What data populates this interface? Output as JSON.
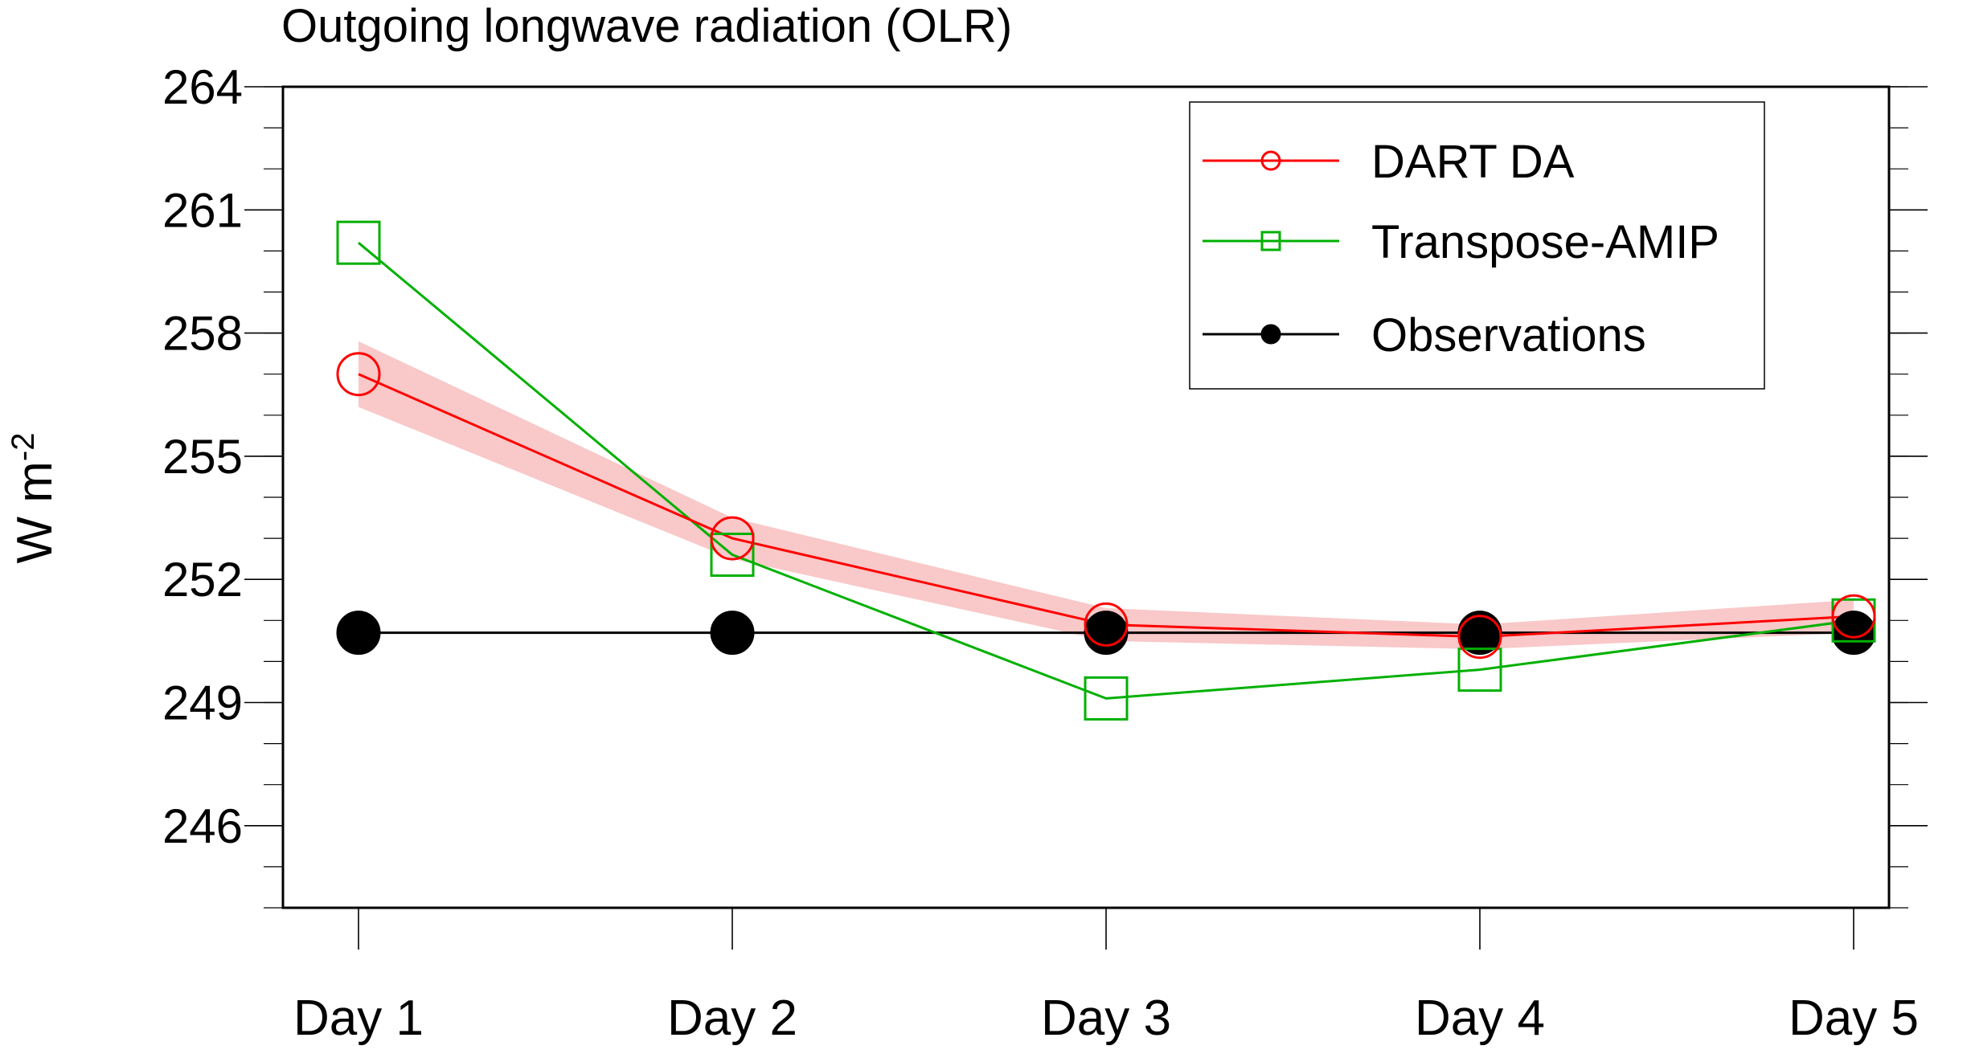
{
  "chart_data": {
    "type": "line",
    "title": "Outgoing longwave radiation (OLR)",
    "ylabel": "W m",
    "ylabel_superscript": "-2",
    "xlabel": "",
    "categories": [
      "Day 1",
      "Day 2",
      "Day 3",
      "Day 4",
      "Day 5"
    ],
    "y_ticks": [
      "246",
      "249",
      "252",
      "255",
      "258",
      "261",
      "264"
    ],
    "ylim": [
      244,
      264
    ],
    "y_minor_step": 1,
    "legend_position": "top-right",
    "series": [
      {
        "name": "DART DA",
        "color": "#ff0000",
        "band_color": "#f9c8c8",
        "marker": "open-circle",
        "values": [
          257.0,
          253.0,
          250.9,
          250.6,
          251.1
        ],
        "band_lower": [
          256.2,
          252.5,
          250.5,
          250.3,
          250.7
        ],
        "band_upper": [
          257.8,
          253.5,
          251.3,
          250.9,
          251.5
        ]
      },
      {
        "name": "Transpose-AMIP",
        "color": "#00b000",
        "marker": "open-square",
        "values": [
          260.2,
          252.6,
          249.1,
          249.8,
          251.0
        ]
      },
      {
        "name": "Observations",
        "color": "#000000",
        "marker": "filled-circle",
        "values": [
          250.7,
          250.7,
          250.7,
          250.7,
          250.7
        ]
      }
    ]
  }
}
